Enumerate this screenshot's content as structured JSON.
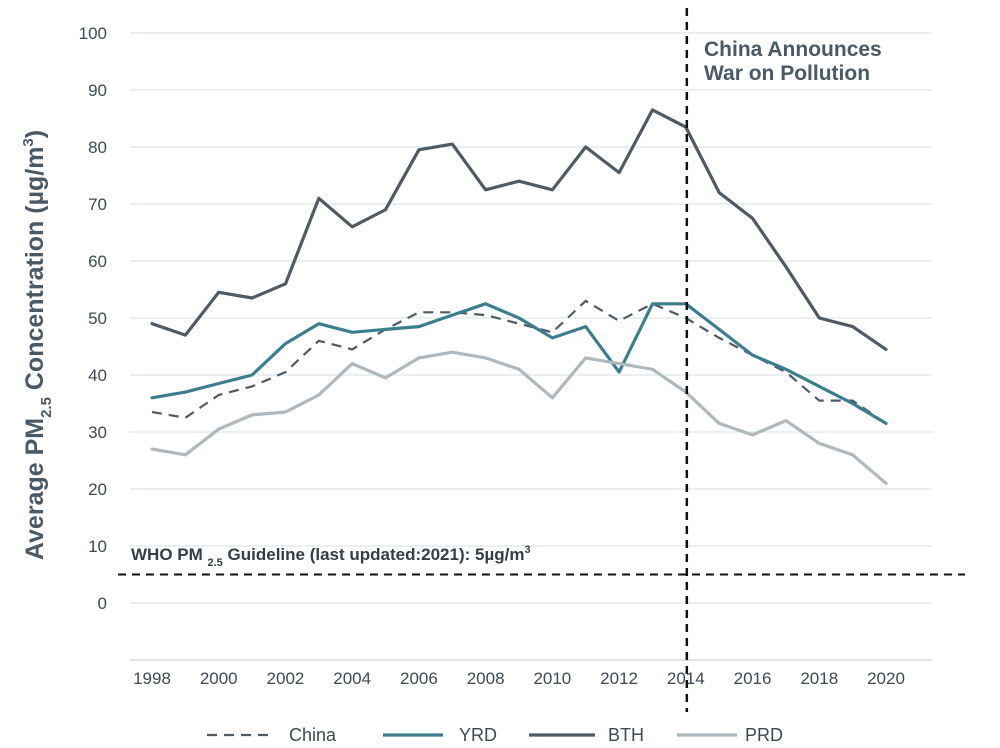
{
  "chart_data": {
    "type": "line",
    "title": "",
    "xlabel": "",
    "ylabel_parts": {
      "pre": "Average PM",
      "sub": "2.5",
      "mid": " Concentration  (µg/m",
      "sup": "3",
      "post": ")"
    },
    "xlim": [
      1998,
      2020
    ],
    "ylim": [
      -10,
      100
    ],
    "yticks": [
      0,
      10,
      20,
      30,
      40,
      50,
      60,
      70,
      80,
      90,
      100
    ],
    "xticks": [
      1998,
      2000,
      2002,
      2004,
      2006,
      2008,
      2010,
      2012,
      2014,
      2016,
      2018,
      2020
    ],
    "grid": true,
    "x": [
      1998,
      1999,
      2000,
      2001,
      2002,
      2003,
      2004,
      2005,
      2006,
      2007,
      2008,
      2009,
      2010,
      2011,
      2012,
      2013,
      2014,
      2015,
      2016,
      2017,
      2018,
      2019,
      2020
    ],
    "series": [
      {
        "name": "BTH",
        "color": "#4e5a64",
        "dash": "",
        "width": 3.2,
        "values": [
          49,
          47,
          54.5,
          53.5,
          56,
          71,
          66,
          69,
          79.5,
          80.5,
          72.5,
          74,
          72.5,
          80,
          75.5,
          86.5,
          83.5,
          72,
          67.5,
          59,
          50,
          48.5,
          44.5
        ]
      },
      {
        "name": "China",
        "color": "#4e5a64",
        "dash": "10,7",
        "width": 2.2,
        "values": [
          33.5,
          32.5,
          36.5,
          38,
          40.5,
          46,
          44.5,
          48,
          51,
          51,
          50.5,
          49,
          47.5,
          53,
          49.5,
          52.5,
          50,
          46.5,
          43.5,
          40.5,
          35.5,
          35.5,
          31.5
        ]
      },
      {
        "name": "YRD",
        "color": "#3b7f8f",
        "dash": "",
        "width": 3.2,
        "values": [
          36,
          37,
          38.5,
          40,
          45.5,
          49,
          47.5,
          48,
          48.5,
          50.5,
          52.5,
          50,
          46.5,
          48.5,
          40.5,
          52.5,
          52.5,
          48,
          43.5,
          41,
          38,
          35,
          31.5
        ]
      },
      {
        "name": "PRD",
        "color": "#afb8bf",
        "dash": "",
        "width": 3.2,
        "values": [
          27,
          26,
          30.5,
          33,
          33.5,
          36.5,
          42,
          39.5,
          43,
          44,
          43,
          41,
          36,
          43,
          42,
          41,
          37,
          31.5,
          29.5,
          32,
          28,
          26,
          21
        ]
      }
    ],
    "legend": {
      "placement": "bottom",
      "entries": [
        {
          "name": "China",
          "color": "#4e5a64",
          "dash": "10,7"
        },
        {
          "name": "YRD",
          "color": "#3b7f8f",
          "dash": ""
        },
        {
          "name": "BTH",
          "color": "#4e5a64",
          "dash": ""
        },
        {
          "name": "PRD",
          "color": "#afb8bf",
          "dash": ""
        }
      ]
    },
    "annotations": {
      "event": {
        "x": 2014,
        "lines": [
          "China Announces",
          "War on Pollution"
        ]
      },
      "who": {
        "y": 5,
        "parts": {
          "pre": "WHO PM ",
          "sub": "2.5",
          "mid": " Guideline (last updated:2021): 5µg/m",
          "sup": "3"
        }
      }
    }
  }
}
